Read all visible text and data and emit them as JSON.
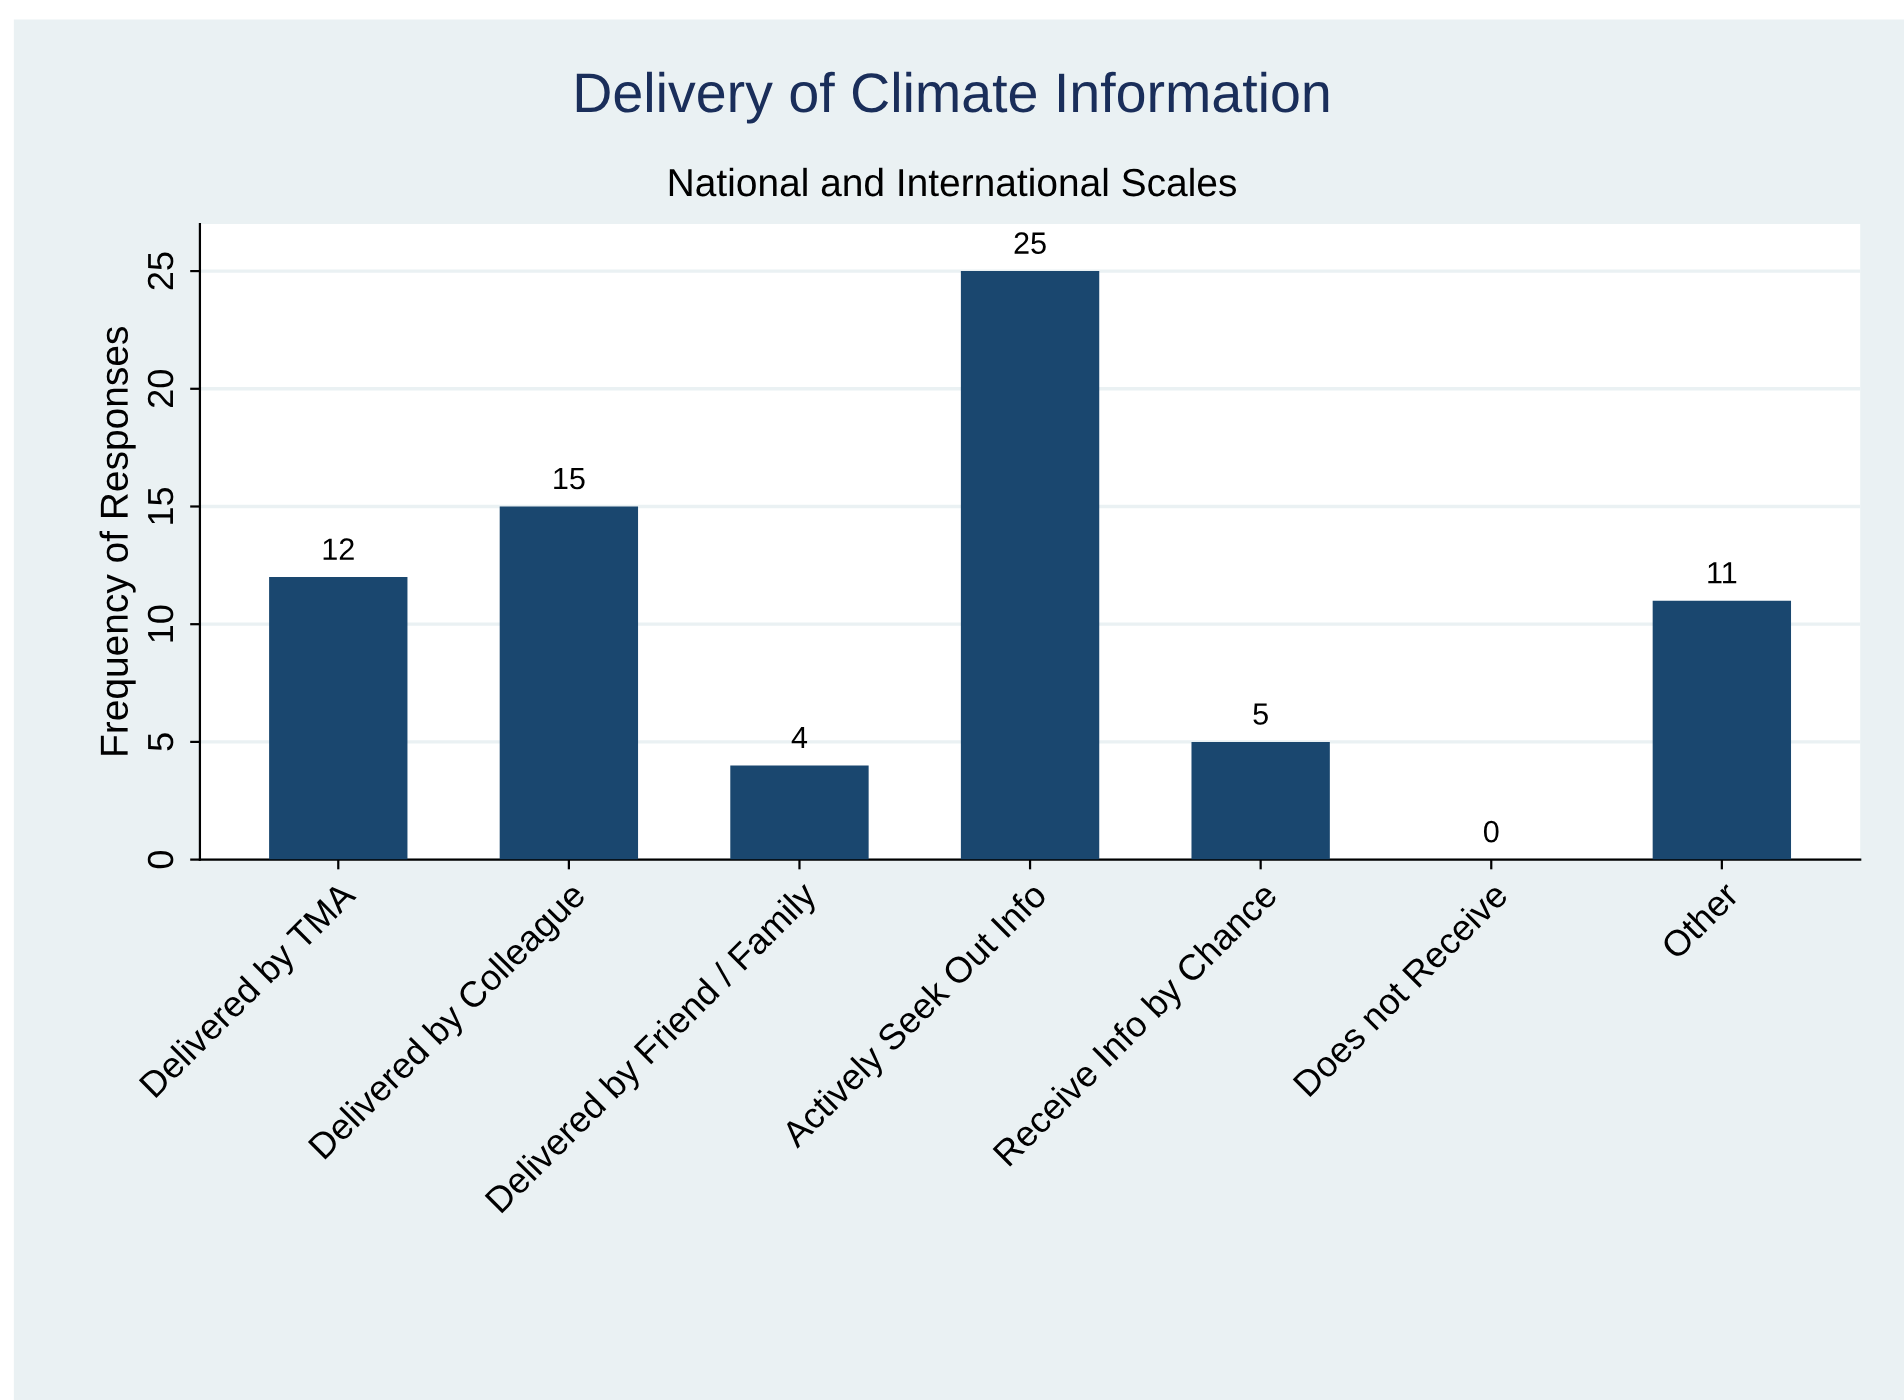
{
  "chart_data": {
    "type": "bar",
    "title": "Delivery of Climate Information",
    "subtitle": "National and International Scales",
    "ylabel": "Frequency of Responses",
    "categories": [
      "Delivered by TMA",
      "Delivered by Colleague",
      "Delivered by Friend / Family",
      "Actively Seek Out Info",
      "Receive Info by Chance",
      "Does not Receive",
      "Other"
    ],
    "values": [
      12,
      15,
      4,
      25,
      5,
      0,
      11
    ],
    "color": "#1a476f",
    "ylim": [
      0,
      27
    ],
    "yticks": [
      0,
      5,
      10,
      15,
      20,
      25
    ],
    "grid": "y",
    "data_labels": true
  }
}
